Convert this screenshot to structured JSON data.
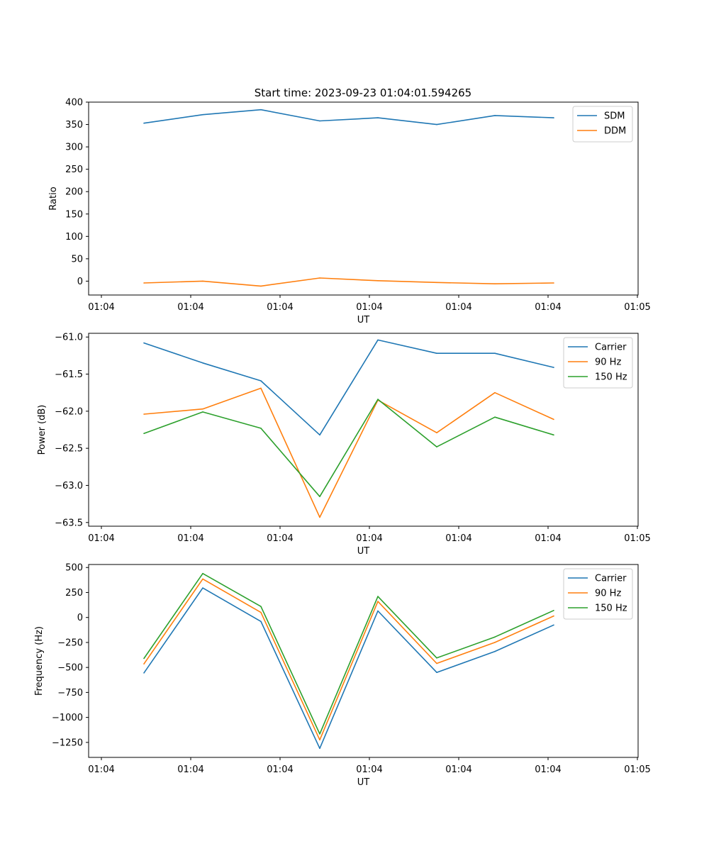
{
  "suptitle": "Start time: 2023-09-23 01:04:01.594265",
  "chart_data": [
    {
      "type": "line",
      "xlabel": "UT",
      "ylabel": "Ratio",
      "xticks": [
        "01:04",
        "01:04",
        "01:04",
        "01:04",
        "01:04",
        "01:04",
        "01:04"
      ],
      "xticks_last": "01:05",
      "ylim": [
        -31,
        400
      ],
      "yticks": [
        0,
        50,
        100,
        150,
        200,
        250,
        300,
        350,
        400
      ],
      "legend_loc": "upper-right",
      "series": [
        {
          "name": "SDM",
          "color": "#1f77b4",
          "values": [
            353,
            372,
            383,
            358,
            365,
            350,
            370,
            365
          ]
        },
        {
          "name": "DDM",
          "color": "#ff7f0e",
          "values": [
            -4,
            0,
            -11,
            7,
            1,
            -3,
            -6,
            -4
          ]
        }
      ]
    },
    {
      "type": "line",
      "xlabel": "UT",
      "ylabel": "Power (dB)",
      "xticks": [
        "01:04",
        "01:04",
        "01:04",
        "01:04",
        "01:04",
        "01:04",
        "01:04"
      ],
      "xticks_last": "01:05",
      "ylim": [
        -63.55,
        -60.95
      ],
      "yticks": [
        -63.5,
        -63.0,
        -62.5,
        -62.0,
        -61.5,
        -61.0
      ],
      "legend_loc": "upper-right",
      "series": [
        {
          "name": "Carrier",
          "color": "#1f77b4",
          "values": [
            -61.08,
            -61.35,
            -61.59,
            -62.32,
            -61.04,
            -61.22,
            -61.22,
            -61.41
          ]
        },
        {
          "name": "90 Hz",
          "color": "#ff7f0e",
          "values": [
            -62.04,
            -61.97,
            -61.69,
            -63.43,
            -61.85,
            -62.29,
            -61.75,
            -62.11
          ]
        },
        {
          "name": "150 Hz",
          "color": "#2ca02c",
          "values": [
            -62.3,
            -62.01,
            -62.23,
            -63.15,
            -61.84,
            -62.48,
            -62.08,
            -62.32
          ]
        }
      ]
    },
    {
      "type": "line",
      "xlabel": "UT",
      "ylabel": "Frequency (Hz)",
      "xticks": [
        "01:04",
        "01:04",
        "01:04",
        "01:04",
        "01:04",
        "01:04",
        "01:04"
      ],
      "xticks_last": "01:05",
      "ylim": [
        -1400,
        530
      ],
      "yticks": [
        -1250,
        -1000,
        -750,
        -500,
        -250,
        0,
        250,
        500
      ],
      "legend_loc": "upper-right",
      "series": [
        {
          "name": "Carrier",
          "color": "#1f77b4",
          "values": [
            -555,
            295,
            -40,
            -1310,
            65,
            -550,
            -340,
            -75
          ]
        },
        {
          "name": "90 Hz",
          "color": "#ff7f0e",
          "values": [
            -465,
            385,
            50,
            -1225,
            160,
            -460,
            -250,
            15
          ]
        },
        {
          "name": "150 Hz",
          "color": "#2ca02c",
          "values": [
            -410,
            440,
            110,
            -1165,
            210,
            -405,
            -195,
            70
          ]
        }
      ]
    }
  ]
}
